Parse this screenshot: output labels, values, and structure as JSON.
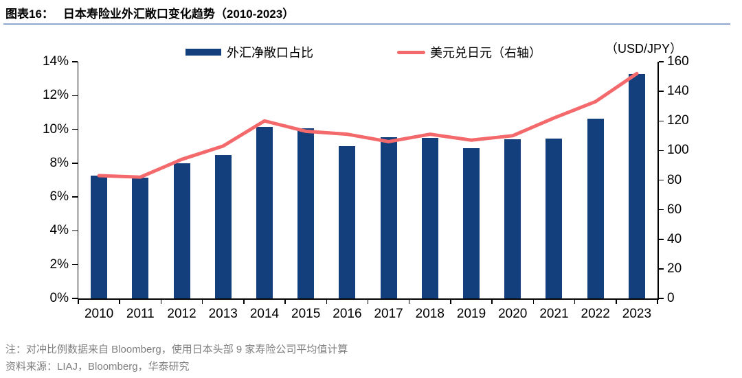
{
  "header": {
    "title_prefix": "图表16：",
    "title": "日本寿险业外汇敞口变化趋势（2010-2023）"
  },
  "legend": {
    "bar_label": "外汇净敞口占比",
    "line_label": "美元兑日元（右轴）"
  },
  "right_axis_unit_label": "（USD/JPY）",
  "chart_data": {
    "type": "bar+line",
    "title": "日本寿险业外汇敞口变化趋势（2010-2023）",
    "categories": [
      "2010",
      "2011",
      "2012",
      "2013",
      "2014",
      "2015",
      "2016",
      "2017",
      "2018",
      "2019",
      "2020",
      "2021",
      "2022",
      "2023"
    ],
    "series": [
      {
        "name": "外汇净敞口占比",
        "type": "bar",
        "axis": "left",
        "unit": "%",
        "values": [
          7.25,
          7.15,
          8.0,
          8.5,
          10.15,
          10.05,
          9.0,
          9.55,
          9.5,
          8.9,
          9.4,
          9.45,
          10.65,
          13.25
        ]
      },
      {
        "name": "美元兑日元（右轴）",
        "type": "line",
        "axis": "right",
        "unit": "USD/JPY",
        "values": [
          83,
          82,
          94,
          103,
          120,
          113,
          111,
          106,
          111,
          107,
          110,
          122,
          133,
          152
        ]
      }
    ],
    "left_axis": {
      "min": 0,
      "max": 14,
      "step": 2,
      "labels": [
        "0%",
        "2%",
        "4%",
        "6%",
        "8%",
        "10%",
        "12%",
        "14%"
      ]
    },
    "right_axis": {
      "min": 0,
      "max": 160,
      "step": 20,
      "labels": [
        "0",
        "20",
        "40",
        "60",
        "80",
        "100",
        "120",
        "140",
        "160"
      ]
    },
    "grid": false,
    "legend_position": "top"
  },
  "footnotes": {
    "note": "注：对冲比例数据来自 Bloomberg，使用日本头部 9 家寿险公司平均值计算",
    "source": "资料来源：LIAJ，Bloomberg，华泰研究"
  },
  "colors": {
    "bar": "#13407C",
    "line": "#F4696B",
    "title_rule": "#8FA6CE",
    "axis": "#000000",
    "footer_text": "#7F7F7F"
  }
}
